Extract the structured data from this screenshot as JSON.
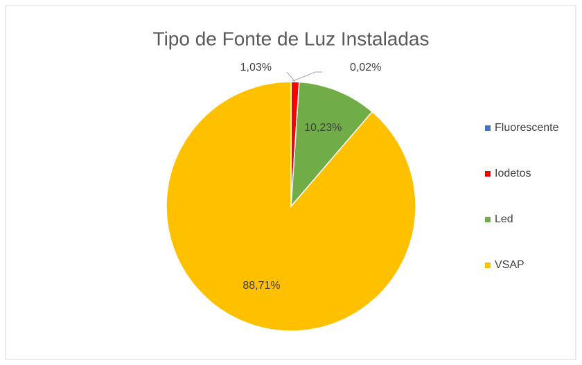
{
  "chart_data": {
    "type": "pie",
    "title": "Tipo de Fonte de Luz Instaladas",
    "categories": [
      "Fluorescente",
      "Iodetos",
      "Led",
      "VSAP"
    ],
    "values": [
      0.02,
      1.03,
      10.23,
      88.71
    ],
    "value_labels": [
      "0,02%",
      "1,03%",
      "10,23%",
      "88,71%"
    ],
    "colors": [
      "#4472c4",
      "#ff0000",
      "#70ad47",
      "#ffc000"
    ],
    "legend": "right"
  }
}
